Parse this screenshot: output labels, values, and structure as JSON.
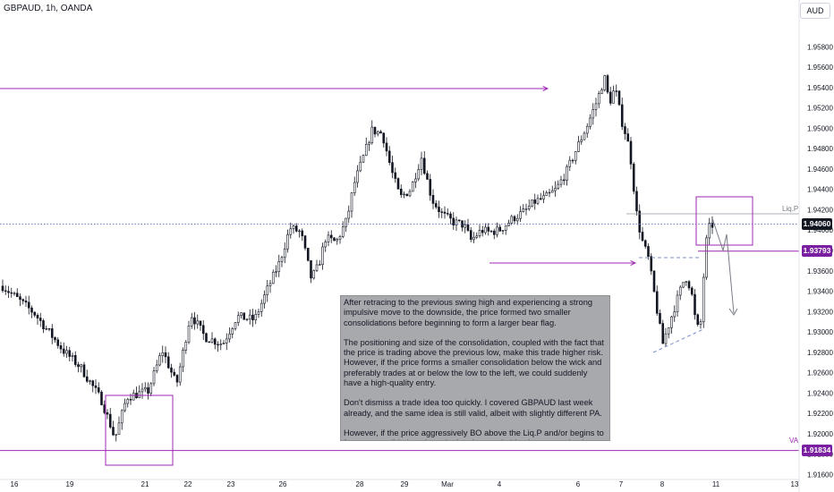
{
  "header": {
    "title": "GBPAUD, 1h, OANDA",
    "currency": "AUD"
  },
  "colors": {
    "up": "#131722",
    "down": "#131722",
    "up_fill": "#ffffff",
    "annotation": "#9c27b0",
    "dashed": "#7b8fc7",
    "liq_line": "#5b6fc7",
    "current_price_tag": "#131722",
    "level_tag": "#7b1fa2",
    "arrow": "#787b86"
  },
  "chart_data": {
    "type": "candlestick",
    "symbol": "GBPAUD",
    "timeframe": "1h",
    "ylim": [
      1.9155,
      1.9605
    ],
    "y_ticks": [
      "1.95800",
      "1.95600",
      "1.95400",
      "1.95200",
      "1.95000",
      "1.94800",
      "1.94600",
      "1.94400",
      "1.94200",
      "1.94000",
      "1.93800",
      "1.93600",
      "1.93400",
      "1.93200",
      "1.93000",
      "1.92800",
      "1.92600",
      "1.92400",
      "1.92200",
      "1.92000",
      "1.91800",
      "1.91600"
    ],
    "x_ticks": [
      "16",
      "19",
      "21",
      "22",
      "23",
      "26",
      "28",
      "29",
      "Mar",
      "4",
      "6",
      "7",
      "8",
      "11",
      "13"
    ],
    "price_tags": [
      {
        "name": "current",
        "value": "1.94060"
      },
      {
        "name": "flag-level",
        "value": "1.93793"
      },
      {
        "name": "va-level",
        "value": "1.91834"
      }
    ],
    "labels": {
      "liq": "Liq.P",
      "va": "VA"
    },
    "path": [
      [
        0,
        1.9345
      ],
      [
        0.045,
        1.9318
      ],
      [
        0.085,
        1.9282
      ],
      [
        0.11,
        1.9265
      ],
      [
        0.14,
        1.9232
      ],
      [
        0.152,
        1.9208
      ],
      [
        0.158,
        1.9195
      ],
      [
        0.175,
        1.9236
      ],
      [
        0.205,
        1.9242
      ],
      [
        0.225,
        1.9282
      ],
      [
        0.245,
        1.9248
      ],
      [
        0.265,
        1.9318
      ],
      [
        0.285,
        1.9295
      ],
      [
        0.31,
        1.9288
      ],
      [
        0.33,
        1.9315
      ],
      [
        0.355,
        1.9312
      ],
      [
        0.375,
        1.9345
      ],
      [
        0.39,
        1.9368
      ],
      [
        0.405,
        1.9402
      ],
      [
        0.42,
        1.9398
      ],
      [
        0.435,
        1.9352
      ],
      [
        0.445,
        1.9365
      ],
      [
        0.455,
        1.9392
      ],
      [
        0.47,
        1.9388
      ],
      [
        0.485,
        1.941
      ],
      [
        0.495,
        1.9445
      ],
      [
        0.51,
        1.9475
      ],
      [
        0.52,
        1.9498
      ],
      [
        0.535,
        1.9495
      ],
      [
        0.548,
        1.9458
      ],
      [
        0.56,
        1.9432
      ],
      [
        0.575,
        1.944
      ],
      [
        0.59,
        1.9472
      ],
      [
        0.605,
        1.943
      ],
      [
        0.62,
        1.9415
      ],
      [
        0.635,
        1.9408
      ],
      [
        0.65,
        1.9405
      ],
      [
        0.66,
        1.939
      ],
      [
        0.675,
        1.94
      ],
      [
        0.685,
        1.9398
      ],
      [
        0.7,
        1.94
      ],
      [
        0.72,
        1.9412
      ],
      [
        0.735,
        1.9418
      ],
      [
        0.75,
        1.9428
      ],
      [
        0.765,
        1.9432
      ],
      [
        0.78,
        1.944
      ],
      [
        0.795,
        1.9458
      ],
      [
        0.81,
        1.9482
      ],
      [
        0.825,
        1.9505
      ],
      [
        0.838,
        1.9528
      ],
      [
        0.848,
        1.955
      ],
      [
        0.855,
        1.9525
      ],
      [
        0.863,
        1.954
      ],
      [
        0.872,
        1.9508
      ],
      [
        0.88,
        1.949
      ],
      [
        0.885,
        1.947
      ],
      [
        0.893,
        1.9418
      ],
      [
        0.9,
        1.9392
      ],
      [
        0.91,
        1.9372
      ],
      [
        0.92,
        1.933
      ],
      [
        0.93,
        1.9288
      ],
      [
        0.94,
        1.931
      ],
      [
        0.952,
        1.9335
      ],
      [
        0.962,
        1.9355
      ],
      [
        0.97,
        1.9342
      ],
      [
        0.978,
        1.9302
      ],
      [
        0.984,
        1.931
      ],
      [
        0.99,
        1.9382
      ],
      [
        0.995,
        1.9402
      ],
      [
        1,
        1.9405
      ]
    ]
  },
  "annotation": {
    "note_paragraphs": [
      "After retracing to the previous swing high and experiencing a strong impulsive move to the downside, the price formed two smaller consolidations before beginning to form a larger bear flag.",
      "The positioning and size of the consolidation, coupled with the fact that the price is trading above the previous low, make this trade higher risk. However, if the price forms a smaller consolidation below the wick and preferably trades at or below the low to the left, we could suddenly have a high-quality entry.",
      "Don't dismiss a trade idea too quickly. I covered GBPAUD last week already, and the same idea is still valid, albeit with slightly different PA.",
      "However, if the price aggressively BO above the Liq.P and/or begins to form a consolidation above it, the short trade idea becomes obsolete"
    ]
  }
}
